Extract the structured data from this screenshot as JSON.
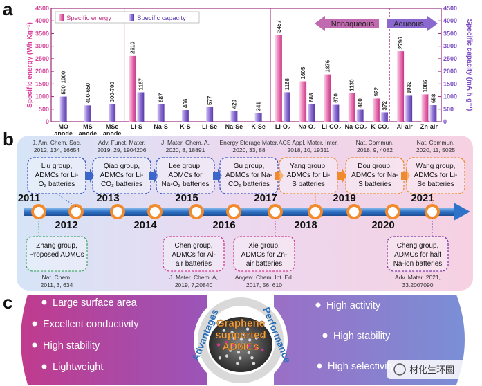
{
  "panel_letters": {
    "a": "a",
    "b": "b",
    "c": "c"
  },
  "chart_data": {
    "type": "bar",
    "ylabel_left": "Specific energy (Wh Kg⁻¹)",
    "ylabel_right": "Specific capacity (mA h g⁻¹)",
    "ylim": [
      0,
      4500
    ],
    "yticks": [
      "0",
      "500",
      "1000",
      "1500",
      "2000",
      "2500",
      "3000",
      "3500",
      "4000",
      "4500"
    ],
    "legend": [
      "Specific energy",
      "Specific capacity"
    ],
    "region_labels": {
      "nonaqueous": "Nonaqueous",
      "aqueous": "Aqueous"
    },
    "categories": [
      "MO anode",
      "MS anode",
      "MSe anode",
      "Li-S",
      "Na-S",
      "K-S",
      "Li-Se",
      "Na-Se",
      "K-Se",
      "Li-O₂",
      "Na-O₂",
      "Li-CO₂",
      "Na-CO₂",
      "K-CO₂",
      "Al-air",
      "Zn-air"
    ],
    "series": [
      {
        "name": "Specific energy",
        "values": [
          null,
          null,
          null,
          2610,
          null,
          null,
          null,
          null,
          null,
          3457,
          1605,
          1876,
          1130,
          922,
          2796,
          1086
        ]
      },
      {
        "name": "Specific capacity",
        "values": [
          1000,
          650,
          700,
          1167,
          687,
          466,
          577,
          429,
          341,
          1168,
          688,
          670,
          480,
          372,
          1032,
          658
        ]
      }
    ],
    "energy_labels": [
      "",
      "",
      "",
      "2610",
      "",
      "",
      "",
      "",
      "",
      "3457",
      "1605",
      "1876",
      "1130",
      "922",
      "2796",
      "1086"
    ],
    "capacity_labels": [
      "500-1000",
      "400-650",
      "300-700",
      "1167",
      "687",
      "466",
      "577",
      "429",
      "341",
      "1168",
      "688",
      "670",
      "480",
      "372",
      "1032",
      "658"
    ],
    "colors": {
      "energy": "#e87ab4",
      "capacity": "#8b6fd1",
      "frame": "#9b2a7a",
      "energy_axis": "#d7439a",
      "capacity_axis": "#7a4bc4"
    }
  },
  "timeline": {
    "years_top": [
      "2011",
      "2013",
      "2015",
      "2017",
      "2019",
      "2021"
    ],
    "years_bottom": [
      "2012",
      "2014",
      "2016",
      "2018",
      "2020"
    ],
    "top_boxes": [
      {
        "ref1": "J. Am. Chem. Soc.",
        "ref2": "2012, 134, 16654",
        "l1": "Liu group,",
        "l2": "ADMCs for Li-",
        "l3": "O₂ batteries"
      },
      {
        "ref1": "Adv. Funct. Mater.",
        "ref2": "2019, 29, 1904206",
        "l1": "Qiao group,",
        "l2": "ADMCs for Li-",
        "l3": "CO₂ batteries"
      },
      {
        "ref1": "J. Mater. Chem. A,",
        "ref2": "2020, 8, 18891",
        "l1": "Lee group,",
        "l2": "ADMCs for",
        "l3": "Na-O₂ batteries"
      },
      {
        "ref1": "Energy Storage Mater.",
        "ref2": "2020, 33, 88",
        "l1": "Gu group,",
        "l2": "ADMCs for Na-",
        "l3": "CO₂ batteries"
      },
      {
        "ref1": "ACS Appl. Mater. Inter.",
        "ref2": "2018, 10, 19311",
        "l1": "Yang group,",
        "l2": "ADMCs for Li-",
        "l3": "S batteries"
      },
      {
        "ref1": "Nat. Commun.",
        "ref2": "2018, 9, 4082",
        "l1": "Dou group,",
        "l2": "ADMCs for Na-",
        "l3": "S batteries"
      },
      {
        "ref1": "Nat. Commun.",
        "ref2": "2020, 11, 5025",
        "l1": "Wang group,",
        "l2": "ADMCs for Li-",
        "l3": "Se batteries"
      }
    ],
    "bottom_boxes": [
      {
        "l1": "Zhang group,",
        "l2": "Proposed ADMCs",
        "l3": "",
        "ref1": "Nat. Chem.",
        "ref2": "2011, 3, 634"
      },
      {
        "l1": "Chen group,",
        "l2": "ADMCs for Al-",
        "l3": "air batteries",
        "ref1": "J. Mater. Chem. A,",
        "ref2": "2019, 7,20840"
      },
      {
        "l1": "Xie group,",
        "l2": "ADMCs for Zn-",
        "l3": "air batteries",
        "ref1": "Angew. Chem. Int. Ed.",
        "ref2": "2017, 56, 610"
      },
      {
        "l1": "Cheng group,",
        "l2": "ADMCs for half",
        "l3": "Na-ion batteries",
        "ref1": "Adv. Mater. 2021,",
        "ref2": "33.2007090"
      }
    ]
  },
  "panel_c": {
    "advantages": [
      "Large surface area",
      "Excellent conductivity",
      "High stability",
      "Lightweight"
    ],
    "performance": [
      "High activity",
      "High stability",
      "High selectivity"
    ],
    "center_title": [
      "Graphene",
      "supported",
      "ADMCs"
    ],
    "arc_left": "Advantages",
    "arc_right": "Performance",
    "watermark": "材化生环圈"
  }
}
